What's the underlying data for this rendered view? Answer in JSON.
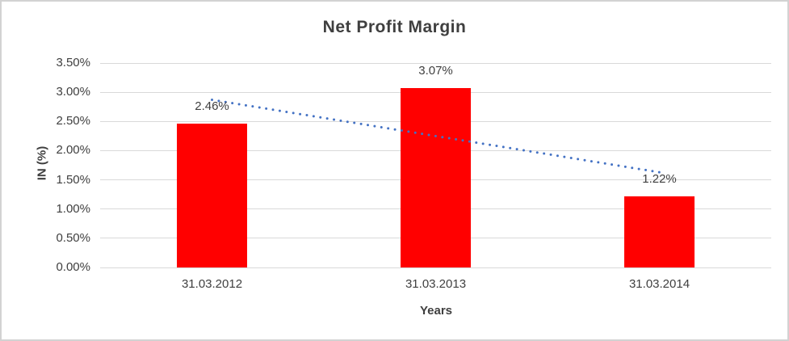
{
  "chart_data": {
    "type": "bar",
    "title": "Net Profit Margin",
    "xlabel": "Years",
    "ylabel": "IN (%)",
    "categories": [
      "31.03.2012",
      "31.03.2013",
      "31.03.2014"
    ],
    "values": [
      2.46,
      3.07,
      1.22
    ],
    "data_labels": [
      "2.46%",
      "3.07%",
      "1.22%"
    ],
    "ylim": [
      0,
      3.5
    ],
    "ytick_step": 0.5,
    "ytick_labels": [
      "0.00%",
      "0.50%",
      "1.00%",
      "1.50%",
      "2.00%",
      "2.50%",
      "3.00%",
      "3.50%"
    ],
    "grid": true,
    "legend_position": "none",
    "bar_color": "#ff0000",
    "trendline": {
      "style": "dotted",
      "color": "#4472c4",
      "start_value": 2.87,
      "end_value": 1.63
    }
  },
  "colors": {
    "gridline": "#d9d9d9",
    "text": "#3f3f3f",
    "border": "#d2d2d2",
    "background": "#ffffff"
  }
}
